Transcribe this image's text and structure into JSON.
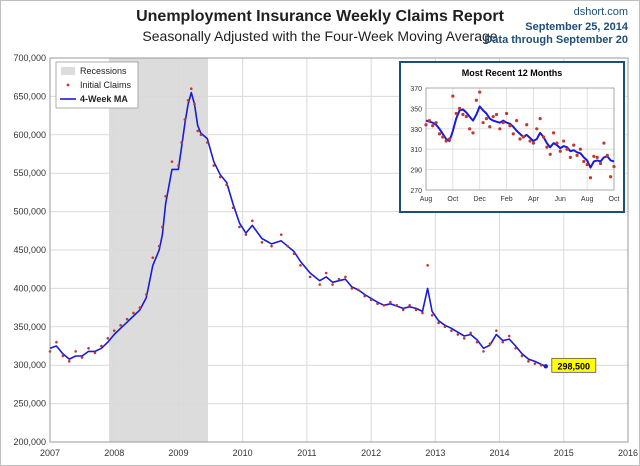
{
  "header": {
    "title": "Unemployment Insurance Weekly Claims Report",
    "subtitle": "Seasonally Adjusted with the Four-Week Moving Average",
    "source": "dshort.com",
    "date": "September 25, 2014",
    "data_through": "Data through September 20"
  },
  "colors": {
    "recession": "#dcdcdc",
    "claims_dot": "#c0392b",
    "ma_line": "#1a1adb",
    "inset_border": "#1f4e79",
    "callout": "#ffff00"
  },
  "callout": {
    "label": "298,500",
    "x": 2014.72,
    "y": 298500
  },
  "chart_data": [
    {
      "type": "line",
      "title": "Unemployment Insurance Weekly Claims Report",
      "subtitle": "Seasonally Adjusted with the Four-Week Moving Average",
      "xlim": [
        2007,
        2016
      ],
      "ylim": [
        200000,
        700000
      ],
      "x_ticks": [
        2007,
        2008,
        2009,
        2010,
        2011,
        2012,
        2013,
        2014,
        2015,
        2016
      ],
      "x_tick_labels": [
        "2007",
        "2008",
        "2009",
        "2010",
        "2011",
        "2012",
        "2013",
        "2014",
        "2015",
        "2016"
      ],
      "y_ticks": [
        200000,
        250000,
        300000,
        350000,
        400000,
        450000,
        500000,
        550000,
        600000,
        650000,
        700000
      ],
      "y_tick_labels": [
        "200,000",
        "250,000",
        "300,000",
        "350,000",
        "400,000",
        "450,000",
        "500,000",
        "550,000",
        "600,000",
        "650,000",
        "700,000"
      ],
      "grid": true,
      "legend": {
        "placement": "top-left",
        "entries": [
          "Recessions",
          "Initial Claims",
          "4-Week MA"
        ]
      },
      "recession": {
        "name": "Recessions",
        "start": 2007.92,
        "end": 2009.46
      },
      "series": [
        {
          "name": "Initial Claims",
          "style": "dots",
          "x": [
            2007.0,
            2007.1,
            2007.2,
            2007.3,
            2007.4,
            2007.5,
            2007.6,
            2007.7,
            2007.8,
            2007.9,
            2008.0,
            2008.1,
            2008.2,
            2008.3,
            2008.4,
            2008.5,
            2008.6,
            2008.7,
            2008.75,
            2008.8,
            2008.9,
            2009.0,
            2009.05,
            2009.1,
            2009.15,
            2009.2,
            2009.25,
            2009.3,
            2009.35,
            2009.45,
            2009.55,
            2009.65,
            2009.75,
            2009.85,
            2009.95,
            2010.05,
            2010.15,
            2010.3,
            2010.45,
            2010.6,
            2010.7,
            2010.8,
            2010.9,
            2011.05,
            2011.2,
            2011.3,
            2011.4,
            2011.5,
            2011.6,
            2011.7,
            2011.8,
            2011.9,
            2012.0,
            2012.1,
            2012.2,
            2012.3,
            2012.4,
            2012.5,
            2012.6,
            2012.7,
            2012.8,
            2012.88,
            2012.95,
            2013.05,
            2013.15,
            2013.25,
            2013.35,
            2013.45,
            2013.55,
            2013.65,
            2013.75,
            2013.85,
            2013.95,
            2014.05,
            2014.15,
            2014.25,
            2014.35,
            2014.45,
            2014.55,
            2014.65,
            2014.72
          ],
          "values": [
            318000,
            330000,
            312000,
            305000,
            318000,
            310000,
            322000,
            316000,
            325000,
            335000,
            345000,
            352000,
            360000,
            368000,
            375000,
            392000,
            440000,
            455000,
            480000,
            520000,
            565000,
            560000,
            590000,
            620000,
            645000,
            660000,
            640000,
            605000,
            600000,
            590000,
            560000,
            545000,
            535000,
            505000,
            480000,
            470000,
            488000,
            460000,
            455000,
            470000,
            455000,
            445000,
            430000,
            415000,
            405000,
            420000,
            405000,
            412000,
            415000,
            400000,
            398000,
            390000,
            385000,
            380000,
            378000,
            382000,
            378000,
            372000,
            378000,
            372000,
            368000,
            430000,
            365000,
            355000,
            350000,
            345000,
            340000,
            335000,
            342000,
            330000,
            318000,
            328000,
            345000,
            330000,
            338000,
            322000,
            312000,
            305000,
            302000,
            300000,
            298000
          ]
        },
        {
          "name": "4-Week MA",
          "style": "line",
          "x": [
            2007.0,
            2007.1,
            2007.2,
            2007.3,
            2007.4,
            2007.5,
            2007.6,
            2007.7,
            2007.8,
            2007.9,
            2008.0,
            2008.1,
            2008.2,
            2008.3,
            2008.4,
            2008.5,
            2008.6,
            2008.7,
            2008.75,
            2008.8,
            2008.9,
            2009.0,
            2009.05,
            2009.1,
            2009.15,
            2009.2,
            2009.25,
            2009.3,
            2009.35,
            2009.45,
            2009.55,
            2009.65,
            2009.75,
            2009.85,
            2009.95,
            2010.05,
            2010.15,
            2010.3,
            2010.45,
            2010.6,
            2010.7,
            2010.8,
            2010.9,
            2011.05,
            2011.2,
            2011.3,
            2011.4,
            2011.5,
            2011.6,
            2011.7,
            2011.8,
            2011.9,
            2012.0,
            2012.1,
            2012.2,
            2012.3,
            2012.4,
            2012.5,
            2012.6,
            2012.7,
            2012.8,
            2012.88,
            2012.95,
            2013.05,
            2013.15,
            2013.25,
            2013.35,
            2013.45,
            2013.55,
            2013.65,
            2013.75,
            2013.85,
            2013.95,
            2014.05,
            2014.15,
            2014.25,
            2014.35,
            2014.45,
            2014.55,
            2014.65,
            2014.72
          ],
          "values": [
            322000,
            325000,
            315000,
            308000,
            312000,
            312000,
            318000,
            318000,
            322000,
            330000,
            340000,
            348000,
            356000,
            364000,
            372000,
            388000,
            430000,
            450000,
            470000,
            510000,
            555000,
            555000,
            585000,
            615000,
            640000,
            655000,
            640000,
            612000,
            602000,
            595000,
            565000,
            548000,
            538000,
            510000,
            485000,
            472000,
            482000,
            465000,
            458000,
            462000,
            455000,
            448000,
            435000,
            420000,
            410000,
            415000,
            408000,
            410000,
            412000,
            402000,
            398000,
            392000,
            387000,
            382000,
            378000,
            380000,
            377000,
            374000,
            376000,
            374000,
            370000,
            400000,
            370000,
            358000,
            352000,
            348000,
            343000,
            338000,
            340000,
            333000,
            322000,
            326000,
            340000,
            332000,
            334000,
            325000,
            315000,
            308000,
            305000,
            301000,
            298500
          ]
        }
      ]
    },
    {
      "type": "line",
      "title": "Most Recent 12 Months",
      "ylim": [
        270,
        370
      ],
      "y_ticks": [
        270,
        290,
        310,
        330,
        350,
        370
      ],
      "y_tick_labels": [
        "270",
        "290",
        "310",
        "330",
        "350",
        "370"
      ],
      "x_tick_labels": [
        "Aug",
        "Oct",
        "Dec",
        "Feb",
        "Apr",
        "Jun",
        "Aug",
        "Oct"
      ],
      "grid": true,
      "series": [
        {
          "name": "Initial Claims",
          "style": "dots",
          "x": [
            0,
            1,
            2,
            3,
            4,
            5,
            6,
            7,
            8,
            9,
            10,
            11,
            12,
            13,
            14,
            15,
            16,
            17,
            18,
            19,
            20,
            21,
            22,
            23,
            24,
            25,
            26,
            27,
            28,
            29,
            30,
            31,
            32,
            33,
            34,
            35,
            36,
            37,
            38,
            39,
            40,
            41,
            42,
            43,
            44,
            45,
            46,
            47,
            48,
            49,
            50,
            51,
            52,
            53,
            54,
            55,
            56
          ],
          "values": [
            334,
            338,
            333,
            336,
            325,
            322,
            318,
            320,
            362,
            345,
            350,
            344,
            342,
            330,
            326,
            358,
            366,
            336,
            340,
            332,
            342,
            344,
            330,
            336,
            345,
            333,
            325,
            338,
            320,
            322,
            334,
            318,
            316,
            330,
            340,
            322,
            312,
            305,
            326,
            316,
            308,
            318,
            310,
            302,
            314,
            304,
            310,
            298,
            295,
            282,
            303,
            302,
            296,
            316,
            304,
            283,
            293
          ]
        },
        {
          "name": "4-Week MA",
          "style": "line",
          "x": [
            0,
            1,
            2,
            3,
            4,
            5,
            6,
            7,
            8,
            9,
            10,
            11,
            12,
            13,
            14,
            15,
            16,
            17,
            18,
            19,
            20,
            21,
            22,
            23,
            24,
            25,
            26,
            27,
            28,
            29,
            30,
            31,
            32,
            33,
            34,
            35,
            36,
            37,
            38,
            39,
            40,
            41,
            42,
            43,
            44,
            45,
            46,
            47,
            48,
            49,
            50,
            51,
            52,
            53,
            54,
            55,
            56
          ],
          "values": [
            338,
            337,
            336,
            334,
            330,
            325,
            320,
            318,
            328,
            340,
            348,
            349,
            346,
            342,
            338,
            344,
            352,
            348,
            345,
            340,
            338,
            337,
            336,
            338,
            336,
            335,
            332,
            328,
            325,
            322,
            324,
            321,
            318,
            320,
            326,
            322,
            316,
            312,
            316,
            314,
            311,
            313,
            312,
            308,
            309,
            307,
            306,
            302,
            299,
            292,
            298,
            299,
            298,
            302,
            303,
            299,
            298
          ]
        }
      ]
    }
  ]
}
